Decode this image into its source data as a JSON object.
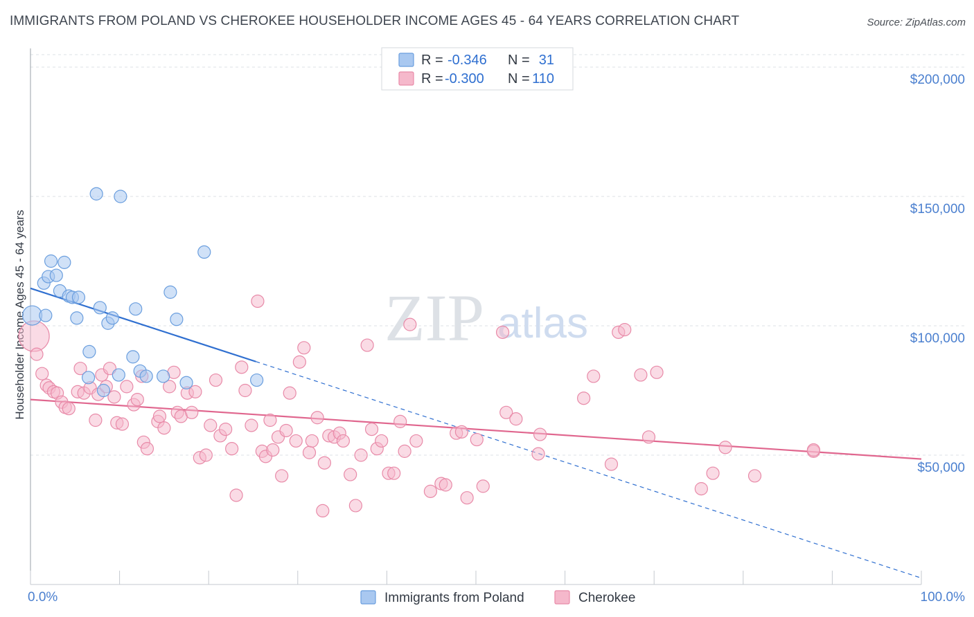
{
  "title": "IMMIGRANTS FROM POLAND VS CHEROKEE HOUSEHOLDER INCOME AGES 45 - 64 YEARS CORRELATION CHART",
  "source": "Source: ZipAtlas.com",
  "watermark": {
    "zip": "ZIP",
    "atlas": "atlas"
  },
  "colors": {
    "poland_fill": "#a9c8f0",
    "poland_stroke": "#6a9ede",
    "poland_line": "#2f6fd0",
    "cherokee_fill": "#f5b8cb",
    "cherokee_stroke": "#e88aa8",
    "cherokee_line": "#e0668e",
    "grid": "#dde1e6",
    "tick_label": "#4a7fcf"
  },
  "legend": {
    "rows": [
      {
        "r_label": "R =",
        "r_value": "-0.346",
        "n_label": "N =",
        "n_value": "31"
      },
      {
        "r_label": "R =",
        "r_value": "-0.300",
        "n_label": "N =",
        "n_value": "110"
      }
    ]
  },
  "bottom_legend": [
    "Immigrants from Poland",
    "Cherokee"
  ],
  "chart_data": {
    "type": "scatter",
    "ylabel": "Householder Income Ages 45 - 64 years",
    "xlabel": "",
    "x_tick_labels": [
      "0.0%",
      "100.0%"
    ],
    "y_tick_labels": [
      "$50,000",
      "$100,000",
      "$150,000",
      "$200,000"
    ],
    "y_ticks": [
      50000,
      100000,
      150000,
      200000
    ],
    "xlim": [
      0,
      100
    ],
    "ylim": [
      0,
      205000
    ],
    "grid": true,
    "legend_position": "top-center",
    "series": [
      {
        "name": "Immigrants from Poland",
        "r": -0.346,
        "n": 31,
        "trend": {
          "x0": 0,
          "y0": 114500,
          "x_solid_end": 25.3,
          "x1": 100,
          "y1": 2500
        },
        "points": [
          [
            0.2,
            104000
          ],
          [
            1.5,
            116500
          ],
          [
            1.7,
            104000
          ],
          [
            2.0,
            119000
          ],
          [
            2.3,
            125000
          ],
          [
            2.9,
            119500
          ],
          [
            3.3,
            113500
          ],
          [
            3.8,
            124500
          ],
          [
            4.3,
            111500
          ],
          [
            4.7,
            111000
          ],
          [
            5.4,
            111000
          ],
          [
            5.2,
            103000
          ],
          [
            6.5,
            80000
          ],
          [
            6.6,
            90000
          ],
          [
            7.4,
            151000
          ],
          [
            7.8,
            107000
          ],
          [
            8.2,
            75000
          ],
          [
            8.7,
            101000
          ],
          [
            9.2,
            103000
          ],
          [
            9.9,
            81000
          ],
          [
            10.1,
            150000
          ],
          [
            11.5,
            88000
          ],
          [
            11.8,
            106500
          ],
          [
            12.3,
            82500
          ],
          [
            13.0,
            80500
          ],
          [
            14.9,
            80500
          ],
          [
            15.7,
            113000
          ],
          [
            16.4,
            102500
          ],
          [
            17.5,
            78000
          ],
          [
            19.5,
            128500
          ],
          [
            25.4,
            79000
          ]
        ]
      },
      {
        "name": "Cherokee",
        "r": -0.3,
        "n": 110,
        "trend": {
          "x0": 0,
          "y0": 71500,
          "x1": 100,
          "y1": 48500
        },
        "points": [
          [
            0.4,
            96000
          ],
          [
            0.7,
            89000
          ],
          [
            1.3,
            81500
          ],
          [
            1.8,
            77000
          ],
          [
            2.1,
            76000
          ],
          [
            2.6,
            74500
          ],
          [
            3.0,
            74000
          ],
          [
            3.5,
            70500
          ],
          [
            3.9,
            68500
          ],
          [
            4.3,
            68000
          ],
          [
            5.3,
            74500
          ],
          [
            5.6,
            83500
          ],
          [
            6.0,
            74000
          ],
          [
            6.7,
            76000
          ],
          [
            7.3,
            63500
          ],
          [
            7.6,
            73500
          ],
          [
            8.0,
            81000
          ],
          [
            8.5,
            76500
          ],
          [
            8.9,
            83500
          ],
          [
            9.4,
            72500
          ],
          [
            9.7,
            62500
          ],
          [
            10.3,
            62000
          ],
          [
            10.8,
            76500
          ],
          [
            11.6,
            69500
          ],
          [
            12.0,
            71500
          ],
          [
            12.5,
            80500
          ],
          [
            12.7,
            55000
          ],
          [
            13.1,
            52500
          ],
          [
            14.3,
            63000
          ],
          [
            14.5,
            65000
          ],
          [
            15.0,
            60500
          ],
          [
            15.6,
            76500
          ],
          [
            16.1,
            82000
          ],
          [
            16.5,
            66500
          ],
          [
            16.9,
            65000
          ],
          [
            17.6,
            74000
          ],
          [
            18.1,
            66500
          ],
          [
            18.5,
            74500
          ],
          [
            19.0,
            49000
          ],
          [
            19.7,
            50000
          ],
          [
            20.2,
            61500
          ],
          [
            20.8,
            79000
          ],
          [
            21.3,
            57500
          ],
          [
            21.9,
            60000
          ],
          [
            22.6,
            52500
          ],
          [
            23.1,
            34500
          ],
          [
            23.7,
            84000
          ],
          [
            24.1,
            75000
          ],
          [
            24.8,
            61500
          ],
          [
            25.5,
            109500
          ],
          [
            26.0,
            51500
          ],
          [
            26.4,
            49500
          ],
          [
            26.9,
            63500
          ],
          [
            27.2,
            52000
          ],
          [
            27.8,
            57000
          ],
          [
            28.2,
            42000
          ],
          [
            28.7,
            59500
          ],
          [
            29.1,
            74000
          ],
          [
            29.8,
            55500
          ],
          [
            30.2,
            86000
          ],
          [
            30.7,
            91500
          ],
          [
            31.3,
            51000
          ],
          [
            31.6,
            55500
          ],
          [
            32.2,
            64500
          ],
          [
            32.8,
            28500
          ],
          [
            33.0,
            47000
          ],
          [
            33.5,
            57500
          ],
          [
            34.1,
            57000
          ],
          [
            34.7,
            58500
          ],
          [
            35.1,
            55500
          ],
          [
            35.9,
            42500
          ],
          [
            36.5,
            30500
          ],
          [
            37.1,
            50000
          ],
          [
            37.8,
            92500
          ],
          [
            38.3,
            60000
          ],
          [
            38.9,
            52500
          ],
          [
            39.4,
            55500
          ],
          [
            40.2,
            43000
          ],
          [
            40.8,
            43000
          ],
          [
            41.5,
            63000
          ],
          [
            42.0,
            51500
          ],
          [
            42.6,
            100500
          ],
          [
            43.3,
            55500
          ],
          [
            44.9,
            36000
          ],
          [
            46.1,
            39000
          ],
          [
            46.6,
            38500
          ],
          [
            47.8,
            58500
          ],
          [
            48.4,
            59000
          ],
          [
            49.0,
            33500
          ],
          [
            50.1,
            56000
          ],
          [
            50.8,
            38000
          ],
          [
            53.0,
            97500
          ],
          [
            53.4,
            66500
          ],
          [
            54.5,
            64000
          ],
          [
            57.0,
            50500
          ],
          [
            57.2,
            58000
          ],
          [
            62.1,
            72000
          ],
          [
            63.2,
            80500
          ],
          [
            65.2,
            46500
          ],
          [
            66.0,
            97500
          ],
          [
            66.7,
            98500
          ],
          [
            68.5,
            81000
          ],
          [
            69.4,
            57000
          ],
          [
            70.3,
            82000
          ],
          [
            75.3,
            37000
          ],
          [
            76.6,
            43000
          ],
          [
            78.0,
            53000
          ],
          [
            81.3,
            42000
          ],
          [
            87.9,
            51500
          ],
          [
            87.9,
            52000
          ]
        ]
      }
    ]
  }
}
